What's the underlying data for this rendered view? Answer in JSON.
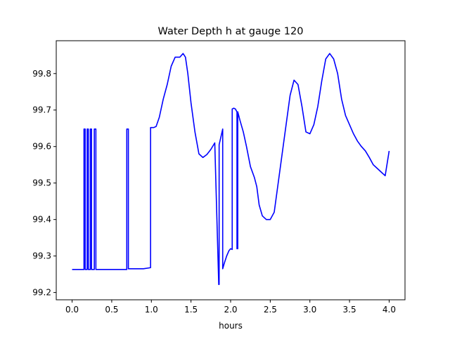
{
  "chart_data": {
    "type": "line",
    "title": "Water Depth h at gauge 120",
    "xlabel": "hours",
    "ylabel": "",
    "xlim": [
      -0.2,
      4.2
    ],
    "ylim": [
      99.18,
      99.89
    ],
    "grid": false,
    "x_ticks": [
      0.0,
      0.5,
      1.0,
      1.5,
      2.0,
      2.5,
      3.0,
      3.5,
      4.0
    ],
    "x_tick_labels": [
      "0.0",
      "0.5",
      "1.0",
      "1.5",
      "2.0",
      "2.5",
      "3.0",
      "3.5",
      "4.0"
    ],
    "y_ticks": [
      99.2,
      99.3,
      99.4,
      99.5,
      99.6,
      99.7,
      99.8
    ],
    "y_tick_labels": [
      "99.2",
      "99.3",
      "99.4",
      "99.5",
      "99.6",
      "99.7",
      "99.8"
    ],
    "series": [
      {
        "color": "#0000ff",
        "x": [
          0.0,
          0.15,
          0.15,
          0.165,
          0.165,
          0.19,
          0.19,
          0.205,
          0.205,
          0.23,
          0.23,
          0.245,
          0.245,
          0.28,
          0.28,
          0.3,
          0.3,
          0.31,
          0.31,
          0.5,
          0.69,
          0.69,
          0.71,
          0.71,
          0.9,
          0.99,
          0.99,
          1.03,
          1.06,
          1.1,
          1.15,
          1.2,
          1.25,
          1.3,
          1.33,
          1.36,
          1.4,
          1.43,
          1.46,
          1.5,
          1.55,
          1.6,
          1.65,
          1.7,
          1.75,
          1.8,
          1.85,
          1.855,
          1.855,
          1.9,
          1.9,
          1.92,
          1.95,
          1.98,
          2.0,
          2.02,
          2.02,
          2.04,
          2.06,
          2.08,
          2.08,
          2.09,
          2.09,
          2.12,
          2.16,
          2.2,
          2.25,
          2.3,
          2.33,
          2.36,
          2.4,
          2.45,
          2.5,
          2.55,
          2.6,
          2.65,
          2.7,
          2.75,
          2.8,
          2.85,
          2.9,
          2.95,
          3.0,
          3.05,
          3.1,
          3.15,
          3.2,
          3.25,
          3.3,
          3.35,
          3.4,
          3.45,
          3.5,
          3.55,
          3.6,
          3.65,
          3.7,
          3.75,
          3.8,
          3.85,
          3.9,
          3.95,
          4.0
        ],
        "y": [
          99.263,
          99.263,
          99.648,
          99.648,
          99.263,
          99.263,
          99.648,
          99.648,
          99.263,
          99.263,
          99.648,
          99.648,
          99.263,
          99.263,
          99.648,
          99.648,
          99.263,
          99.263,
          99.263,
          99.263,
          99.263,
          99.648,
          99.648,
          99.265,
          99.265,
          99.268,
          99.652,
          99.652,
          99.655,
          99.68,
          99.73,
          99.77,
          99.82,
          99.845,
          99.845,
          99.845,
          99.855,
          99.845,
          99.8,
          99.72,
          99.64,
          99.58,
          99.57,
          99.578,
          99.592,
          99.61,
          99.222,
          99.222,
          99.605,
          99.648,
          99.265,
          99.28,
          99.3,
          99.315,
          99.32,
          99.318,
          99.703,
          99.705,
          99.703,
          99.695,
          99.32,
          99.32,
          99.695,
          99.67,
          99.64,
          99.6,
          99.545,
          99.515,
          99.49,
          99.44,
          99.41,
          99.4,
          99.4,
          99.42,
          99.5,
          99.58,
          99.66,
          99.74,
          99.782,
          99.77,
          99.71,
          99.64,
          99.635,
          99.66,
          99.71,
          99.78,
          99.84,
          99.855,
          99.84,
          99.8,
          99.73,
          99.685,
          99.66,
          99.635,
          99.615,
          99.6,
          99.588,
          99.57,
          99.55,
          99.54,
          99.53,
          99.52,
          99.588
        ]
      }
    ]
  }
}
